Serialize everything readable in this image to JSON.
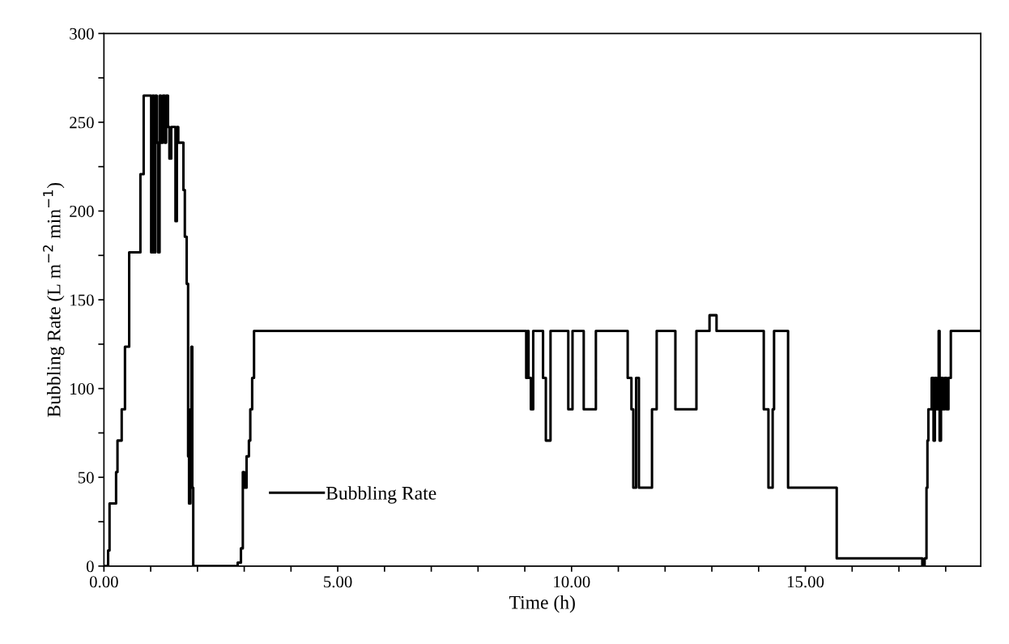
{
  "chart_data": {
    "type": "step",
    "xlabel": "Time (h)",
    "ylabel": "Bubbling Rate (L m$^{−2}$ min$^{−1}$)",
    "xlim": [
      0,
      18.75
    ],
    "ylim": [
      0,
      300
    ],
    "xticks": [
      {
        "value": 0,
        "label": "0.00"
      },
      {
        "value": 1,
        "label": null
      },
      {
        "value": 2,
        "label": null
      },
      {
        "value": 3,
        "label": null
      },
      {
        "value": 4,
        "label": null
      },
      {
        "value": 5,
        "label": "5.00"
      },
      {
        "value": 6,
        "label": null
      },
      {
        "value": 7,
        "label": null
      },
      {
        "value": 8,
        "label": null
      },
      {
        "value": 9,
        "label": null
      },
      {
        "value": 10,
        "label": "10.00"
      },
      {
        "value": 11,
        "label": null
      },
      {
        "value": 12,
        "label": null
      },
      {
        "value": 13,
        "label": null
      },
      {
        "value": 14,
        "label": null
      },
      {
        "value": 15,
        "label": "15.00"
      },
      {
        "value": 16,
        "label": null
      },
      {
        "value": 17,
        "label": null
      },
      {
        "value": 18,
        "label": null
      }
    ],
    "yticks": [
      0,
      {
        "value": 25,
        "label": null
      },
      50,
      {
        "value": 75,
        "label": null
      },
      100,
      {
        "value": 125,
        "label": null
      },
      150,
      {
        "value": 175,
        "label": null
      },
      200,
      {
        "value": 225,
        "label": null
      },
      250,
      {
        "value": 275,
        "label": null
      },
      300
    ],
    "grid": false,
    "legend": "bottom left",
    "marker": "none",
    "line_style": "solid",
    "series": [
      {
        "name": "Bubbling Rate",
        "color": "#000000",
        "x": [
          0,
          0.09,
          0.12,
          0.26,
          0.29,
          0.38,
          0.45,
          0.54,
          0.78,
          0.85,
          1.01,
          1.04,
          1.07,
          1.1,
          1.13,
          1.16,
          1.19,
          1.22,
          1.26,
          1.3,
          1.33,
          1.37,
          1.4,
          1.44,
          1.53,
          1.56,
          1.59,
          1.7,
          1.73,
          1.77,
          1.8,
          1.82,
          1.85,
          1.87,
          1.89,
          1.91,
          2.86,
          2.93,
          2.97,
          3.0,
          3.05,
          3.1,
          3.13,
          3.17,
          3.21,
          9.03,
          9.06,
          9.08,
          9.13,
          9.18,
          9.39,
          9.45,
          9.55,
          9.93,
          10.02,
          10.26,
          10.52,
          11.2,
          11.28,
          11.32,
          11.38,
          11.44,
          11.47,
          11.72,
          11.82,
          12.22,
          12.67,
          12.95,
          13.1,
          14.11,
          14.21,
          14.3,
          14.33,
          14.63,
          15.67,
          17.5,
          17.55,
          17.59,
          17.61,
          17.63,
          17.7,
          17.74,
          17.77,
          17.8,
          17.83,
          17.85,
          17.87,
          17.9,
          17.94,
          17.98,
          18.02,
          18.06,
          18.11,
          18.75
        ],
        "values": [
          0,
          8.8,
          35.3,
          53,
          70.7,
          88.3,
          123.6,
          176.7,
          220.8,
          265,
          176.7,
          265,
          176.7,
          265,
          238.5,
          176.7,
          265,
          238.5,
          265,
          238.5,
          265,
          247.3,
          229.6,
          247.3,
          194.3,
          247.3,
          238.5,
          211.9,
          185.5,
          159,
          61.8,
          35.3,
          88.3,
          123.6,
          44.2,
          0,
          2,
          10,
          53,
          44.2,
          61.8,
          70.7,
          88.3,
          106,
          132.5,
          106,
          132.5,
          106,
          88.3,
          132.5,
          106,
          70.7,
          132.5,
          88.3,
          132.5,
          88.3,
          132.5,
          106,
          88.3,
          44.2,
          106,
          44.2,
          44.2,
          88.3,
          132.5,
          88.3,
          132.5,
          141.3,
          132.5,
          88.3,
          44.2,
          88.3,
          132.5,
          44.2,
          4.4,
          0,
          4.4,
          44.2,
          70.7,
          88.3,
          106,
          70.7,
          106,
          88.3,
          106,
          132.5,
          70.7,
          106,
          88.3,
          106,
          88.3,
          106,
          132.5,
          132.5
        ]
      }
    ]
  }
}
